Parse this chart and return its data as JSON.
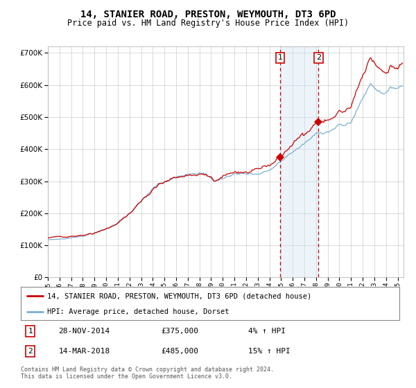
{
  "title": "14, STANIER ROAD, PRESTON, WEYMOUTH, DT3 6PD",
  "subtitle": "Price paid vs. HM Land Registry's House Price Index (HPI)",
  "legend_line1": "14, STANIER ROAD, PRESTON, WEYMOUTH, DT3 6PD (detached house)",
  "legend_line2": "HPI: Average price, detached house, Dorset",
  "annotation1_date": "28-NOV-2014",
  "annotation1_price": "£375,000",
  "annotation1_hpi": "4% ↑ HPI",
  "annotation2_date": "14-MAR-2018",
  "annotation2_price": "£485,000",
  "annotation2_hpi": "15% ↑ HPI",
  "footnote": "Contains HM Land Registry data © Crown copyright and database right 2024.\nThis data is licensed under the Open Government Licence v3.0.",
  "sale1_year": 2014.917,
  "sale1_value": 375000,
  "sale2_year": 2018.208,
  "sale2_value": 485000,
  "red_line_color": "#cc0000",
  "blue_line_color": "#7ab0d4",
  "shade_color": "#cce0f0",
  "dashed_color": "#cc0000",
  "ylim_min": 0,
  "ylim_max": 720000,
  "yticks": [
    0,
    100000,
    200000,
    300000,
    400000,
    500000,
    600000,
    700000
  ],
  "background_color": "#ffffff",
  "grid_color": "#cccccc"
}
